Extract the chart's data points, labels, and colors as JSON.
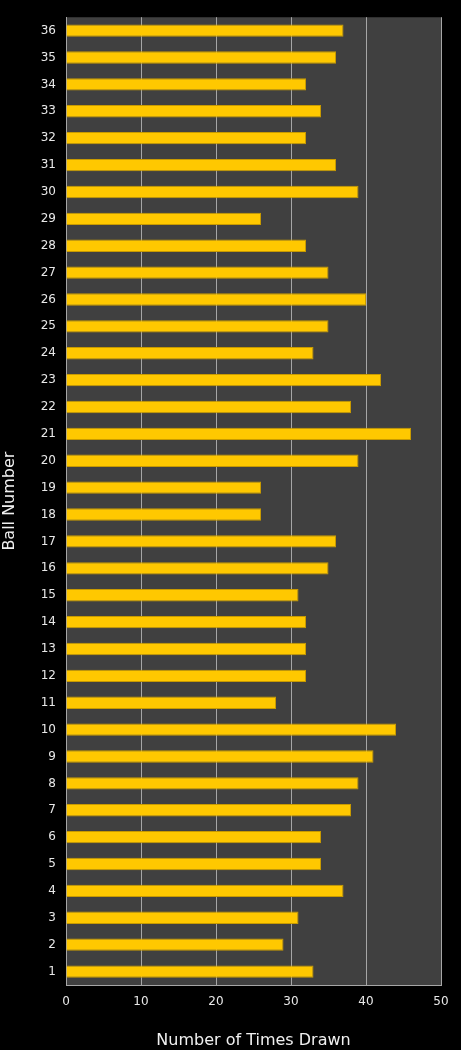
{
  "chart_data": {
    "type": "bar",
    "orientation": "horizontal",
    "categories": [
      "36",
      "35",
      "34",
      "33",
      "32",
      "31",
      "30",
      "29",
      "28",
      "27",
      "26",
      "25",
      "24",
      "23",
      "22",
      "21",
      "20",
      "19",
      "18",
      "17",
      "16",
      "15",
      "14",
      "13",
      "12",
      "11",
      "10",
      "9",
      "8",
      "7",
      "6",
      "5",
      "4",
      "3",
      "2",
      "1"
    ],
    "values": [
      37,
      36,
      32,
      34,
      32,
      36,
      39,
      26,
      32,
      35,
      40,
      35,
      33,
      42,
      38,
      46,
      39,
      26,
      26,
      36,
      35,
      31,
      32,
      32,
      32,
      28,
      44,
      41,
      39,
      38,
      34,
      34,
      37,
      31,
      29,
      33
    ],
    "color": "#ffc800",
    "xlabel": "Number of Times Drawn",
    "ylabel": "Ball Number",
    "xlim": [
      0,
      50
    ],
    "xticks": [
      0,
      10,
      20,
      30,
      40,
      50
    ],
    "grid": "x"
  }
}
